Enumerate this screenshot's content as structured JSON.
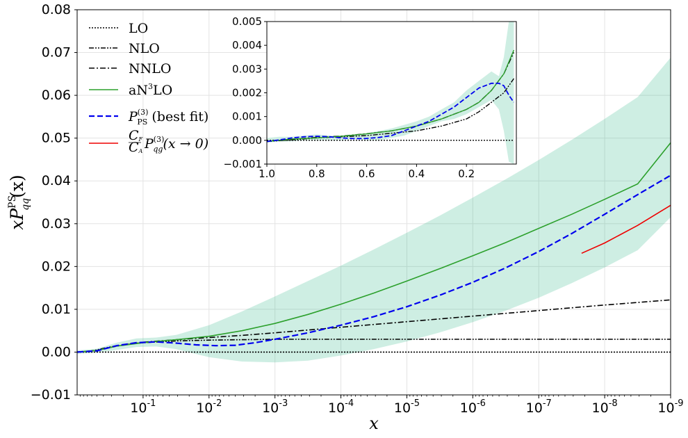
{
  "chart_data": {
    "type": "line",
    "title": "",
    "xlabel": "x",
    "ylabel": "x P_qq^PS(x)",
    "ylabel_main": "xP",
    "ylabel_sup": "PS",
    "ylabel_sub": "qq",
    "ylabel_arg": "(x)",
    "x_scale": "log10 (reversed, decreasing to the right)",
    "xlim": [
      1.0,
      1e-09
    ],
    "ylim": [
      -0.01,
      0.08
    ],
    "grid": true,
    "x_tick_bases": [
      "10",
      "10",
      "10",
      "10",
      "10",
      "10",
      "10",
      "10",
      "10"
    ],
    "x_tick_exps": [
      "-1",
      "-2",
      "-3",
      "-4",
      "-5",
      "-6",
      "-7",
      "-8",
      "-9"
    ],
    "x_tick_decades": [
      -1,
      -2,
      -3,
      -4,
      -5,
      -6,
      -7,
      -8,
      -9
    ],
    "y_tick_labels": [
      "−0.01",
      "0.00",
      "0.01",
      "0.02",
      "0.03",
      "0.04",
      "0.05",
      "0.06",
      "0.07",
      "0.08"
    ],
    "y_tick_values": [
      -0.01,
      0,
      0.01,
      0.02,
      0.03,
      0.04,
      0.05,
      0.06,
      0.07,
      0.08
    ],
    "legend_position": "top-left",
    "legend": [
      {
        "key": "LO",
        "label": "LO",
        "color": "#000000",
        "style": "dotted"
      },
      {
        "key": "NLO",
        "label": "NLO",
        "color": "#000000",
        "style": "dash-dot-dot"
      },
      {
        "key": "NNLO",
        "label": "NNLO",
        "color": "#000000",
        "style": "dash-dot"
      },
      {
        "key": "aN3LO",
        "label_main": "aN",
        "label_sup": "3",
        "label_end": "LO",
        "color": "#2ca02c",
        "style": "solid"
      },
      {
        "key": "P3PS",
        "label_main": "P",
        "label_sup": "(3)",
        "label_sub": "PS",
        "label_end": " (best fit)",
        "color": "#0000ee",
        "style": "dashed"
      },
      {
        "key": "small_x",
        "label_frac_num": "C",
        "label_frac_num_sub": "F",
        "label_frac_den": "C",
        "label_frac_den_sub": "A",
        "label_main": "P",
        "label_sup": "(3)",
        "label_sub": "qg",
        "label_end": "(x → 0)",
        "color": "#ee0000",
        "style": "solid"
      }
    ],
    "band": {
      "name": "aN3LO uncertainty",
      "color": "#2ab585",
      "opacity": 0.23
    },
    "series": [
      {
        "name": "LO",
        "color": "#000000",
        "dash": "2,2",
        "log10x": [
          0,
          -9
        ],
        "y": [
          0,
          0
        ]
      },
      {
        "name": "NLO",
        "color": "#000000",
        "dash": "7,2,2,2,2,2",
        "log10x": [
          0,
          -0.2,
          -0.5,
          -0.8,
          -1,
          -1.5,
          -2,
          -2.5,
          -3,
          -3.5,
          -4,
          -5,
          -6,
          -7,
          -8,
          -9
        ],
        "y": [
          0,
          0.0002,
          0.0012,
          0.0019,
          0.0022,
          0.0026,
          0.0028,
          0.0029,
          0.003,
          0.003,
          0.003,
          0.003,
          0.003,
          0.003,
          0.003,
          0.003
        ]
      },
      {
        "name": "NNLO",
        "color": "#000000",
        "dash": "8,3,2,3",
        "log10x": [
          0,
          -0.3,
          -0.6,
          -1,
          -1.5,
          -2,
          -2.5,
          -3,
          -4,
          -5,
          -6,
          -7,
          -8,
          -9
        ],
        "y": [
          0,
          0.0004,
          0.0014,
          0.0023,
          0.0029,
          0.0034,
          0.0039,
          0.0045,
          0.0058,
          0.0071,
          0.0084,
          0.0097,
          0.011,
          0.0122
        ]
      },
      {
        "name": "aN3LO",
        "color": "#2ca02c",
        "dash": "",
        "log10x": [
          0,
          -0.3,
          -0.6,
          -1,
          -1.5,
          -2,
          -2.5,
          -3,
          -3.5,
          -4,
          -4.5,
          -5,
          -5.5,
          -6,
          -6.5,
          -7,
          -7.5,
          -8,
          -8.5,
          -9
        ],
        "y": [
          0,
          0.0004,
          0.0014,
          0.0022,
          0.0029,
          0.0037,
          0.005,
          0.0067,
          0.0088,
          0.0112,
          0.0138,
          0.0166,
          0.0195,
          0.0225,
          0.0256,
          0.0289,
          0.0322,
          0.0357,
          0.0393,
          0.0489
        ]
      },
      {
        "name": "P3PS best fit",
        "color": "#0000ee",
        "dash": "9,4",
        "log10x": [
          0,
          -0.3,
          -0.6,
          -0.9,
          -1.2,
          -1.5,
          -1.8,
          -2.1,
          -2.4,
          -2.7,
          -3,
          -3.5,
          -4,
          -4.5,
          -5,
          -5.5,
          -6,
          -6.5,
          -7,
          -7.5,
          -8,
          -8.5,
          -9
        ],
        "y": [
          0,
          0.0003,
          0.0015,
          0.0022,
          0.0024,
          0.0021,
          0.0017,
          0.0015,
          0.0016,
          0.0022,
          0.003,
          0.0045,
          0.0063,
          0.0083,
          0.0106,
          0.0133,
          0.0163,
          0.0197,
          0.0235,
          0.0277,
          0.0322,
          0.0368,
          0.0413
        ]
      },
      {
        "name": "CF/CA P3qg small-x",
        "color": "#ee0000",
        "dash": "",
        "log10x": [
          -7.65,
          -8,
          -8.5,
          -9
        ],
        "y": [
          0.0231,
          0.0255,
          0.0296,
          0.0343
        ]
      }
    ],
    "band_data": {
      "log10x": [
        0,
        -0.3,
        -0.6,
        -0.9,
        -1.2,
        -1.5,
        -2,
        -2.5,
        -3,
        -3.5,
        -4,
        -4.5,
        -5,
        -5.5,
        -6,
        -6.5,
        -7,
        -7.5,
        -8,
        -8.5,
        -9
      ],
      "upper": [
        0.0004,
        0.0008,
        0.0022,
        0.0032,
        0.0034,
        0.004,
        0.0063,
        0.0095,
        0.013,
        0.0166,
        0.0202,
        0.024,
        0.0279,
        0.0319,
        0.0361,
        0.0404,
        0.0449,
        0.0496,
        0.0545,
        0.0596,
        0.0688
      ],
      "lower": [
        -0.0004,
        -0.0001,
        0.0005,
        0.0012,
        0.0013,
        0.0007,
        -0.0012,
        -0.0022,
        -0.0024,
        -0.002,
        -0.0008,
        0.0007,
        0.0025,
        0.0046,
        0.007,
        0.0097,
        0.0127,
        0.0161,
        0.0198,
        0.0238,
        0.0315
      ]
    },
    "inset": {
      "type": "line",
      "xlim": [
        1.0,
        0.0
      ],
      "ylim": [
        -0.001,
        0.005
      ],
      "x_tick_labels": [
        "1.0",
        "0.8",
        "0.6",
        "0.4",
        "0.2"
      ],
      "x_tick_values": [
        1.0,
        0.8,
        0.6,
        0.4,
        0.2
      ],
      "y_tick_labels": [
        "−0.001",
        "0.000",
        "0.001",
        "0.002",
        "0.003",
        "0.004",
        "0.005"
      ],
      "y_tick_values": [
        -0.001,
        0,
        0.001,
        0.002,
        0.003,
        0.004,
        0.005
      ],
      "band_data": {
        "x": [
          1.0,
          0.95,
          0.9,
          0.85,
          0.8,
          0.75,
          0.7,
          0.65,
          0.6,
          0.55,
          0.5,
          0.45,
          0.4,
          0.35,
          0.3,
          0.25,
          0.2,
          0.15,
          0.1,
          0.07,
          0.05,
          0.03,
          0.01
        ],
        "upper": [
          0.0001,
          0.00015,
          0.00015,
          0.0002,
          0.00025,
          0.0002,
          0.0002,
          0.00025,
          0.0003,
          0.0004,
          0.0005,
          0.00065,
          0.0008,
          0.001,
          0.0013,
          0.0016,
          0.0021,
          0.0025,
          0.0029,
          0.0027,
          0.0035,
          0.005,
          0.006
        ],
        "lower": [
          -0.0001,
          -5e-05,
          -5e-05,
          0.0,
          0.0,
          0.0,
          0.0,
          5e-05,
          0.0,
          0.0,
          0.0001,
          0.0002,
          0.0004,
          0.0006,
          0.0008,
          0.0009,
          0.0011,
          0.0014,
          0.0017,
          0.0013,
          0.0004,
          -0.0009,
          -0.001
        ]
      },
      "series": [
        {
          "name": "LO",
          "color": "#000000",
          "dash": "2,2",
          "x": [
            1.0,
            0.01
          ],
          "y": [
            0,
            0
          ]
        },
        {
          "name": "NLO",
          "color": "#000000",
          "dash": "7,2,2,2,2,2",
          "x": [
            1.0,
            0.9,
            0.8,
            0.7,
            0.6,
            0.5,
            0.4,
            0.3,
            0.2,
            0.15,
            0.1,
            0.05,
            0.01
          ],
          "y": [
            -5e-05,
            2e-05,
            0.0001,
            0.00015,
            0.0002,
            0.0003,
            0.0004,
            0.0006,
            0.0009,
            0.0012,
            0.0016,
            0.002,
            0.0026
          ]
        },
        {
          "name": "NNLO",
          "color": "#000000",
          "dash": "8,3,2,3",
          "x": [
            1.0,
            0.9,
            0.8,
            0.7,
            0.6,
            0.5,
            0.4,
            0.3,
            0.2,
            0.15,
            0.1,
            0.05,
            0.01
          ],
          "y": [
            -5e-05,
            5e-05,
            0.00012,
            0.00018,
            0.00028,
            0.0004,
            0.0006,
            0.0009,
            0.0013,
            0.0016,
            0.0021,
            0.0028,
            0.0037
          ]
        },
        {
          "name": "aN3LO",
          "color": "#2ca02c",
          "dash": "",
          "x": [
            1.0,
            0.9,
            0.8,
            0.7,
            0.6,
            0.5,
            0.4,
            0.3,
            0.2,
            0.15,
            0.1,
            0.05,
            0.01
          ],
          "y": [
            -5e-05,
            5e-05,
            0.0001,
            0.00017,
            0.00027,
            0.0004,
            0.0006,
            0.0009,
            0.0013,
            0.0016,
            0.0021,
            0.0028,
            0.0038
          ]
        },
        {
          "name": "P3PS best fit",
          "color": "#0000ee",
          "dash": "7,3",
          "x": [
            1.0,
            0.95,
            0.9,
            0.85,
            0.8,
            0.75,
            0.7,
            0.65,
            0.6,
            0.55,
            0.5,
            0.45,
            0.4,
            0.35,
            0.3,
            0.25,
            0.2,
            0.15,
            0.1,
            0.07,
            0.05,
            0.03,
            0.01
          ],
          "y": [
            -5e-05,
            2e-05,
            0.0001,
            0.00015,
            0.00017,
            0.00015,
            0.0001,
            7e-05,
            8e-05,
            0.00012,
            0.0002,
            0.0004,
            0.0006,
            0.0008,
            0.0011,
            0.0014,
            0.0018,
            0.0022,
            0.0024,
            0.0024,
            0.0023,
            0.0019,
            0.0016
          ]
        }
      ]
    }
  }
}
